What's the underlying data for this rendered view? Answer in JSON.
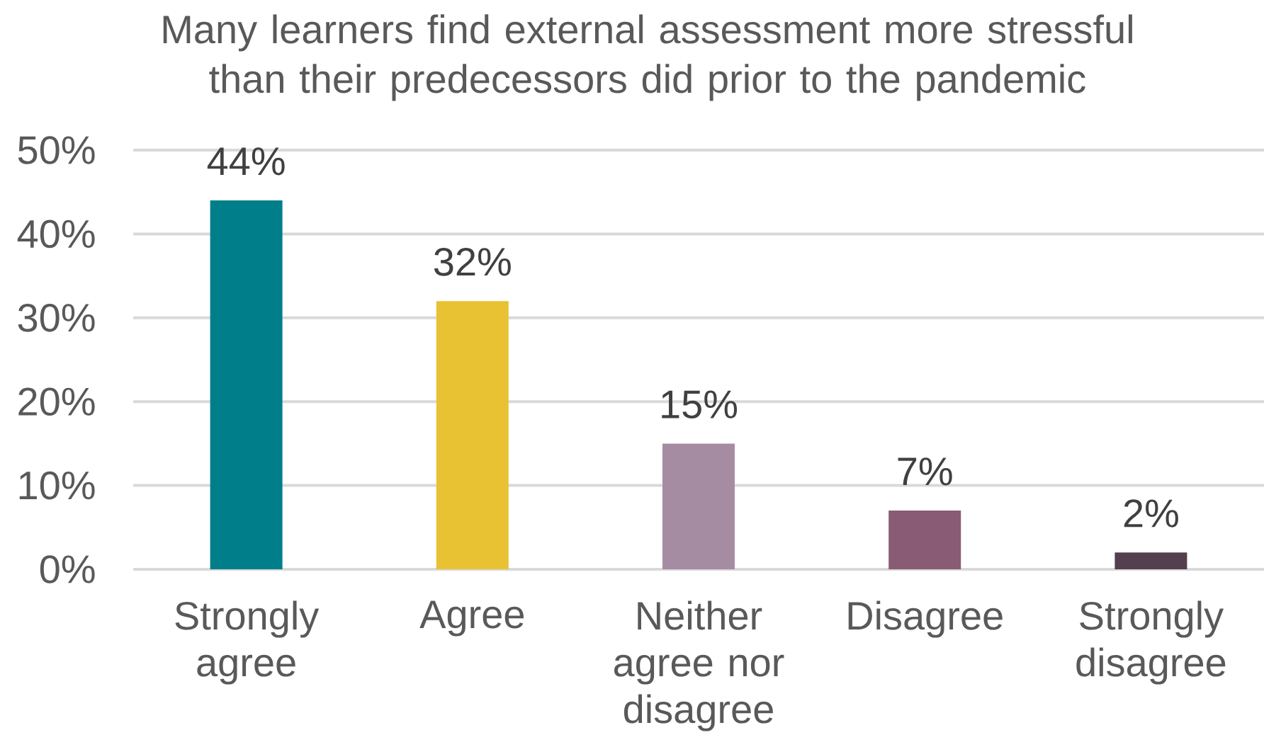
{
  "chart_data": {
    "type": "bar",
    "title": "Many learners find external assessment more stressful than their predecessors did prior to the pandemic",
    "categories": [
      "Strongly agree",
      "Agree",
      "Neither agree nor disagree",
      "Disagree",
      "Strongly disagree"
    ],
    "values": [
      44,
      32,
      15,
      7,
      2
    ],
    "colors": [
      "#007f8a",
      "#e9c233",
      "#a68ca3",
      "#8a5b74",
      "#533f4e"
    ],
    "value_labels": [
      "44%",
      "32%",
      "15%",
      "7%",
      "2%"
    ],
    "ylim": [
      0,
      50
    ],
    "yticks": [
      {
        "value": 0,
        "label": "0%"
      },
      {
        "value": 10,
        "label": "10%"
      },
      {
        "value": 20,
        "label": "20%"
      },
      {
        "value": 30,
        "label": "30%"
      },
      {
        "value": 40,
        "label": "40%"
      },
      {
        "value": 50,
        "label": "50%"
      }
    ],
    "grid": "y"
  }
}
